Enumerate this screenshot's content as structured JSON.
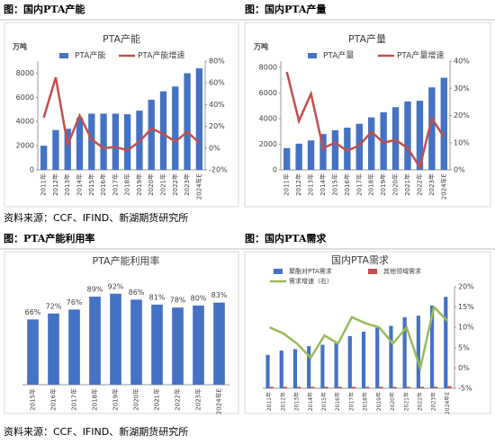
{
  "panels": [
    {
      "header": "图：国内PTA产能"
    },
    {
      "header": "图：国内PTA产量"
    },
    {
      "header": "图：PTA产能利用率"
    },
    {
      "header": "图：国内PTA需求"
    }
  ],
  "sources": [
    "资料来源：CCF、IFIND、新湖期货研究所",
    "资料来源：CCF、IFIND、新湖期货研究所"
  ],
  "chart_data": [
    {
      "type": "bar",
      "title": "PTA产能",
      "y_label": "万吨",
      "categories": [
        "2011年",
        "2012年",
        "2013年",
        "2014年",
        "2015年",
        "2016年",
        "2017年",
        "2018年",
        "2019年",
        "2020年",
        "2021年",
        "2022年",
        "2023年",
        "2024年E"
      ],
      "series": [
        {
          "name": "PTA产能",
          "color": "#4472c4",
          "values": [
            2000,
            3300,
            3400,
            4300,
            4650,
            4650,
            4650,
            4600,
            4900,
            5800,
            6500,
            6900,
            8000,
            8400
          ]
        },
        {
          "name": "PTA产能增速",
          "color": "#c0504d",
          "type": "line",
          "axis": "y2",
          "values": [
            28,
            65,
            3,
            30,
            8,
            0,
            1,
            -2,
            6,
            18,
            13,
            6,
            15,
            5
          ]
        }
      ],
      "ylim": [
        0,
        9000
      ],
      "yticks": [
        0,
        2000,
        4000,
        6000,
        8000
      ],
      "y2lim": [
        -20,
        80
      ],
      "y2ticks": [
        {
          "value": -20,
          "label": "-20%"
        },
        {
          "value": 0,
          "label": "0%"
        },
        {
          "value": 20,
          "label": "20%"
        },
        {
          "value": 40,
          "label": "40%"
        },
        {
          "value": 60,
          "label": "60%"
        },
        {
          "value": 80,
          "label": "80%"
        }
      ]
    },
    {
      "type": "bar",
      "title": "PTA产量",
      "y_label": "万吨",
      "categories": [
        "2011年",
        "2012年",
        "2013年",
        "2014年",
        "2015年",
        "2016年",
        "2017年",
        "2018年",
        "2019年",
        "2020年",
        "2021年",
        "2022年",
        "2023年",
        "2024年E"
      ],
      "series": [
        {
          "name": "PTA产量",
          "color": "#4472c4",
          "values": [
            1700,
            2050,
            2300,
            2800,
            3100,
            3300,
            3600,
            4100,
            4500,
            4900,
            5350,
            5400,
            6450,
            7200
          ]
        },
        {
          "name": "PTA产量增速",
          "color": "#c0504d",
          "type": "line",
          "axis": "y2",
          "values": [
            36,
            18,
            28,
            8,
            10,
            7,
            9,
            14,
            10,
            11,
            8,
            1,
            19,
            12
          ]
        }
      ],
      "ylim": [
        0,
        8500
      ],
      "yticks": [
        0,
        2000,
        4000,
        6000,
        8000
      ],
      "y2lim": [
        0,
        40
      ],
      "y2ticks": [
        {
          "value": 0,
          "label": "0%"
        },
        {
          "value": 10,
          "label": "10%"
        },
        {
          "value": 20,
          "label": "20%"
        },
        {
          "value": 30,
          "label": "30%"
        },
        {
          "value": 40,
          "label": "40%"
        }
      ]
    },
    {
      "type": "bar",
      "title": "PTA产能利用率",
      "categories": [
        "2015年",
        "2016年",
        "2017年",
        "2018年",
        "2019年",
        "2020年",
        "2021年",
        "2022年",
        "2023年",
        "2024年E"
      ],
      "series": [
        {
          "color": "#4472c4",
          "values": [
            66,
            72,
            76,
            89,
            92,
            86,
            81,
            78,
            80,
            83
          ],
          "value_labels": [
            "66%",
            "72%",
            "76%",
            "89%",
            "92%",
            "86%",
            "81%",
            "78%",
            "80%",
            "83%"
          ]
        }
      ],
      "ylim": [
        0,
        100
      ]
    },
    {
      "type": "bar",
      "title": "国内PTA需求",
      "categories": [
        "2011年",
        "2012年",
        "2013年",
        "2014年",
        "2015年",
        "2016年",
        "2017年",
        "2018年",
        "2019年",
        "2020年",
        "2021年",
        "2022年",
        "2023年",
        "2024年E"
      ],
      "series": [
        {
          "name": "聚酯对PTA需求",
          "color": "#4472c4",
          "values": [
            2300,
            2600,
            2700,
            2900,
            3000,
            3100,
            3600,
            3900,
            4200,
            4300,
            4900,
            5000,
            5700,
            6300
          ]
        },
        {
          "name": "其他领域需求",
          "color": "#c0504d",
          "values": [
            100,
            100,
            100,
            100,
            100,
            100,
            100,
            100,
            100,
            100,
            100,
            100,
            100,
            150
          ]
        },
        {
          "name": "需求增速（右）",
          "color": "#9bbb59",
          "type": "line",
          "axis": "y2",
          "values": [
            10,
            8.5,
            6,
            2.5,
            8,
            6,
            12.5,
            11,
            10,
            6,
            10,
            0,
            15,
            11.5
          ]
        }
      ],
      "ylim": [
        0,
        7000
      ],
      "y2lim": [
        -5,
        20
      ],
      "y2ticks": [
        {
          "value": -5,
          "label": "-5%"
        },
        {
          "value": 0,
          "label": "0%"
        },
        {
          "value": 5,
          "label": "5%"
        },
        {
          "value": 10,
          "label": "10%"
        },
        {
          "value": 15,
          "label": "15%"
        },
        {
          "value": 20,
          "label": "20%"
        }
      ]
    }
  ]
}
